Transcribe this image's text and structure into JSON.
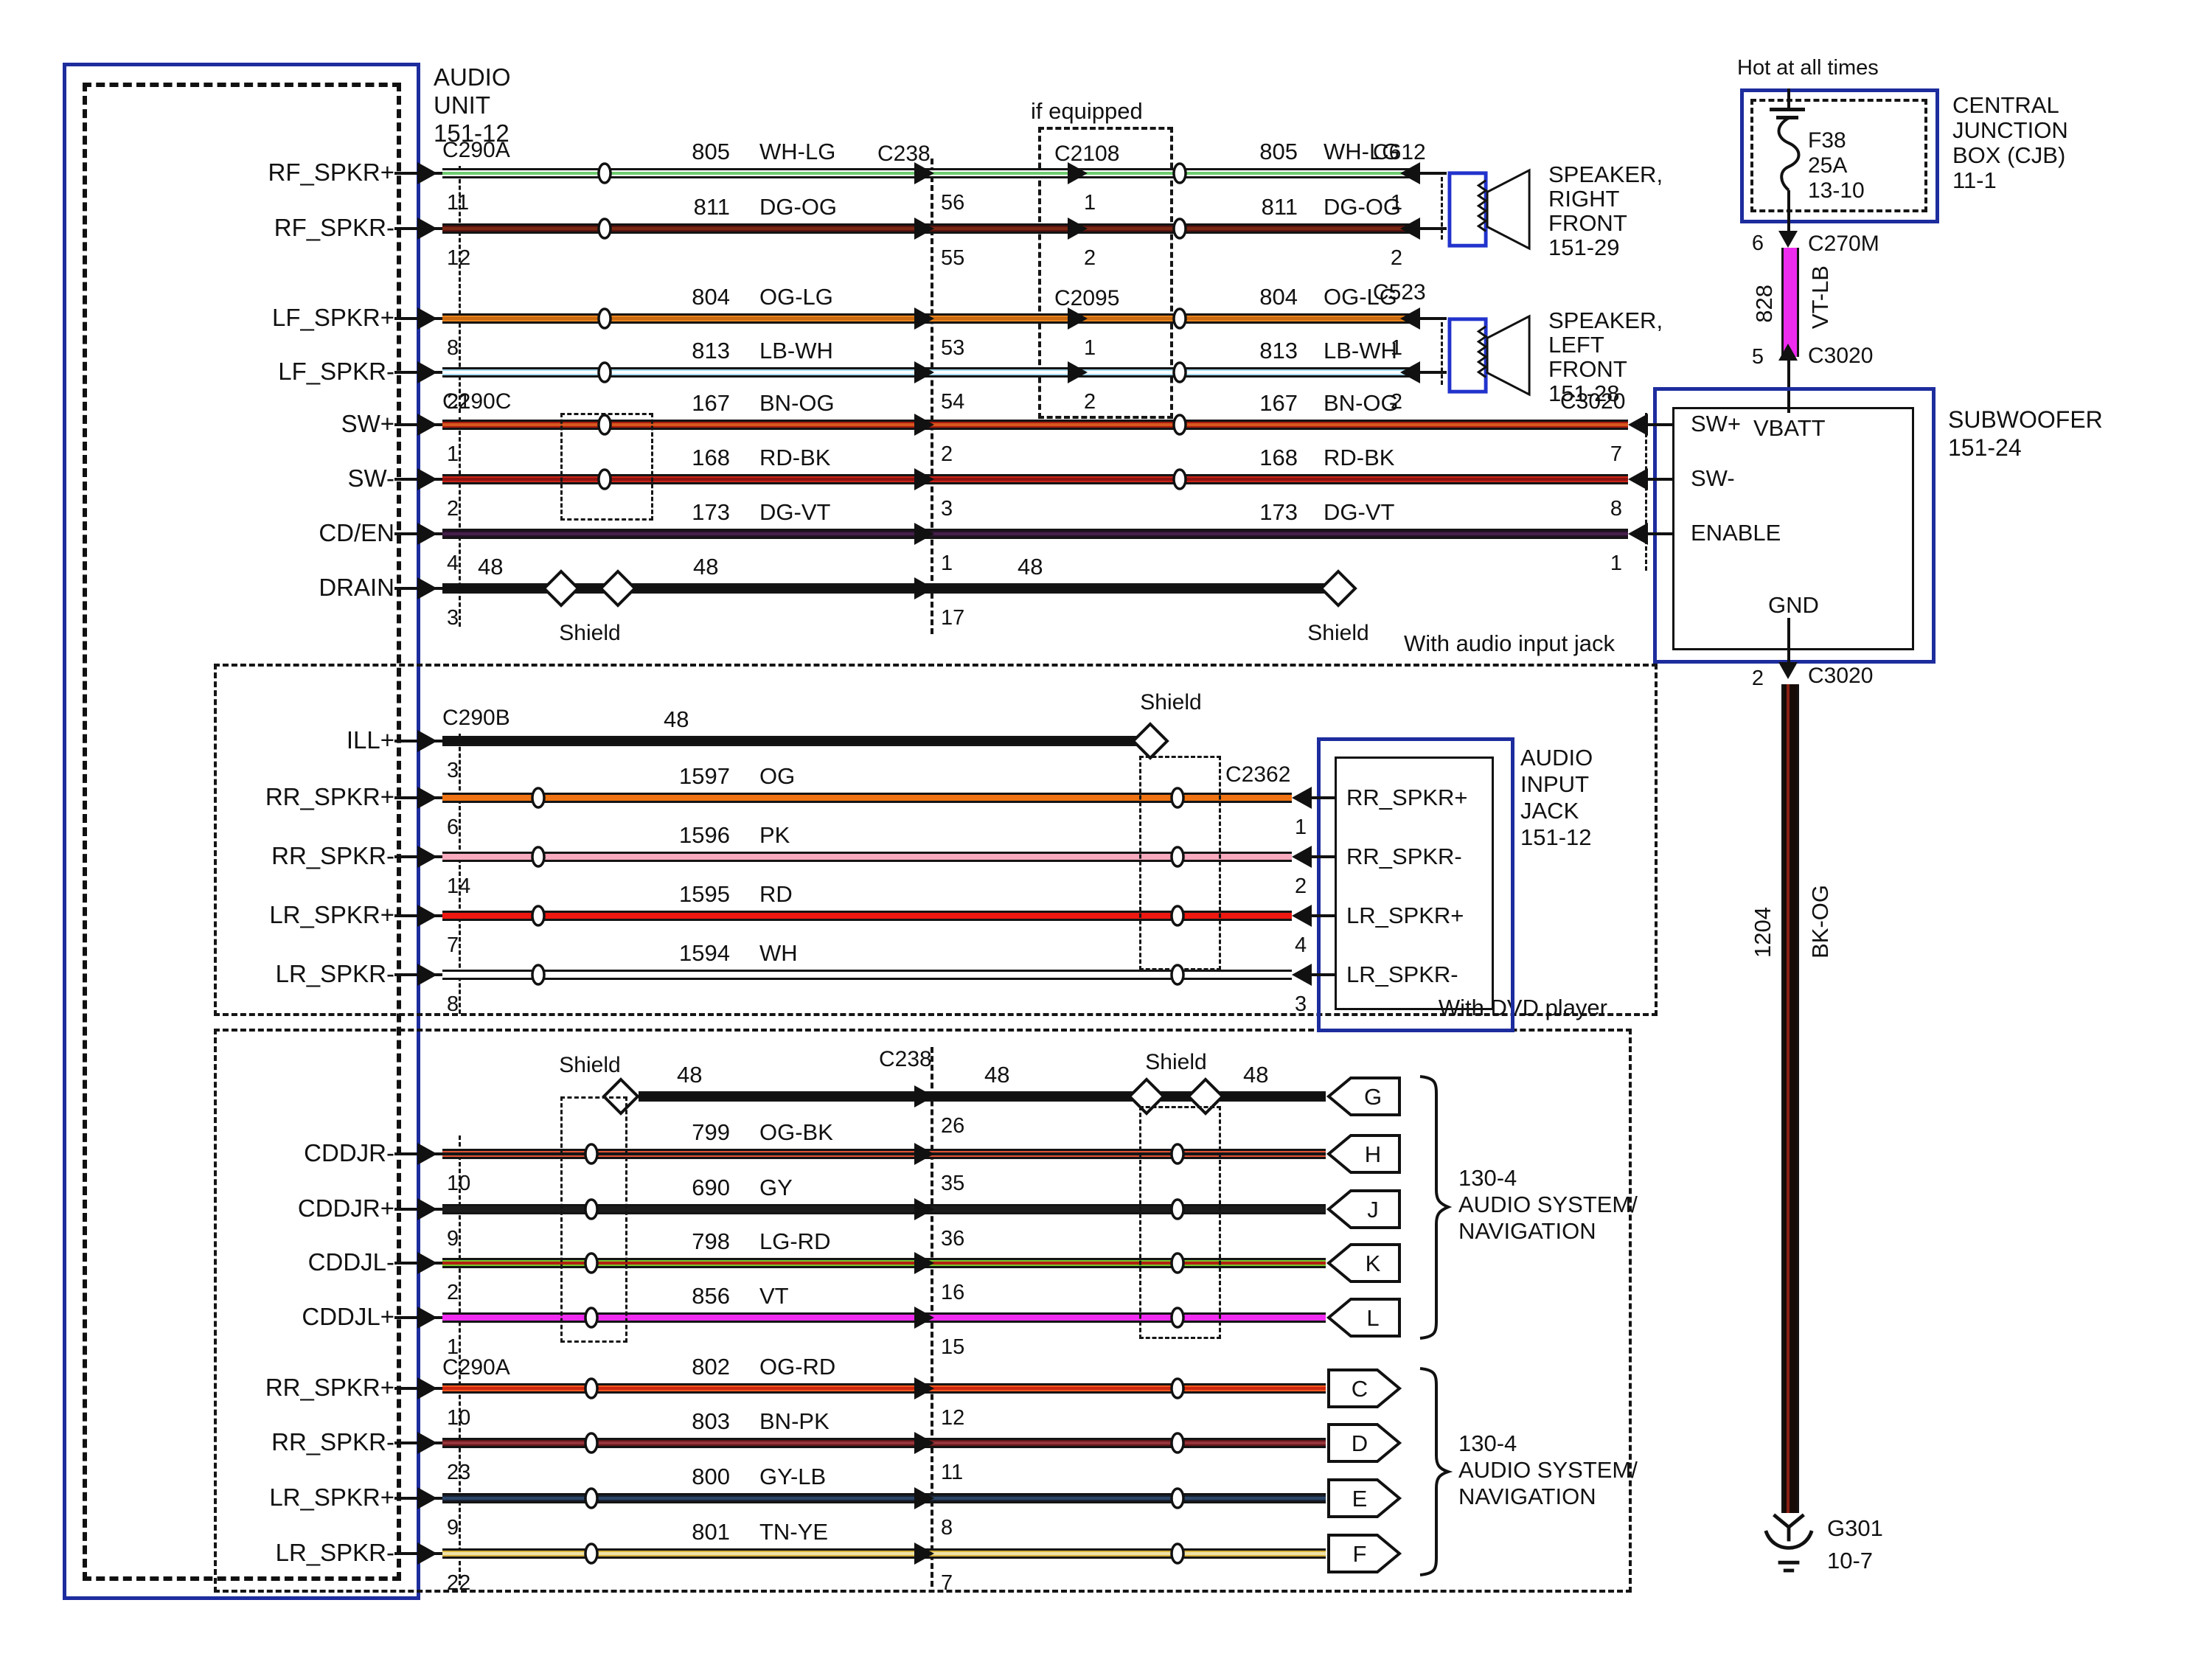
{
  "audio_unit": {
    "title": "AUDIO\nUNIT\n151-12"
  },
  "section_titles": {
    "audio_input": "With audio input jack",
    "dvd": "With DVD player",
    "if_equipped": "if equipped"
  },
  "shield_label": "Shield",
  "connectors": {
    "c290a": "C290A",
    "c290b": "C290B",
    "c290c": "C290C",
    "c238": "C238",
    "c2108": "C2108",
    "c2095": "C2095",
    "c612": "C612",
    "c523": "C523",
    "c2362": "C2362",
    "c3020": "C3020",
    "c270m": "C270M"
  },
  "top_rows": [
    {
      "label": "RF_SPKR+",
      "pin": "11",
      "circuit": "805",
      "code": "WH-LG",
      "c238_pin": "56",
      "equip_pin": "1",
      "base": "#ffffff",
      "stripe": "#6ecc6e"
    },
    {
      "label": "RF_SPKR-",
      "pin": "12",
      "circuit": "811",
      "code": "DG-OG",
      "c238_pin": "55",
      "equip_pin": "2",
      "base": "#581410",
      "stripe": "#7a2a14"
    },
    {
      "label": "LF_SPKR+",
      "pin": "8",
      "circuit": "804",
      "code": "OG-LG",
      "c238_pin": "53",
      "equip_pin": "1",
      "base": "#e8821c",
      "stripe": "#c96a12"
    },
    {
      "label": "LF_SPKR-",
      "pin": "21",
      "circuit": "813",
      "code": "LB-WH",
      "c238_pin": "54",
      "equip_pin": "2",
      "base": "#a6dcf2",
      "stripe": "#ffffff"
    },
    {
      "label": "SW+",
      "pin": "1",
      "circuit": "167",
      "code": "BN-OG",
      "c238_pin": "2",
      "base": "#ab1c10",
      "stripe": "#d8581e"
    },
    {
      "label": "SW-",
      "pin": "2",
      "circuit": "168",
      "code": "RD-BK",
      "c238_pin": "3",
      "base": "#cc2418",
      "stripe": "#8c1410"
    },
    {
      "label": "CD/EN",
      "pin": "4",
      "circuit": "173",
      "code": "DG-VT",
      "c238_pin": "1",
      "base": "#261028",
      "stripe": "#44204a"
    },
    {
      "label": "DRAIN",
      "pin": "3",
      "circuit": "48",
      "code": "",
      "c238_pin": "17",
      "base": "#111111"
    }
  ],
  "audio_rows": [
    {
      "label": "ILL+",
      "pin": "3",
      "circuit": "48",
      "code": "",
      "base": "#111111"
    },
    {
      "label": "RR_SPKR+",
      "pin": "6",
      "circuit": "1597",
      "code": "OG",
      "base": "#ef7312"
    },
    {
      "label": "RR_SPKR-",
      "pin": "14",
      "circuit": "1596",
      "code": "PK",
      "base": "#f8aabe"
    },
    {
      "label": "LR_SPKR+",
      "pin": "7",
      "circuit": "1595",
      "code": "RD",
      "base": "#ee1811"
    },
    {
      "label": "LR_SPKR-",
      "pin": "8",
      "circuit": "1594",
      "code": "WH",
      "base": "#ffffff"
    }
  ],
  "dvd_rows": [
    {
      "label": "",
      "pin": "",
      "circuit": "48",
      "code": "",
      "c238_pin": "26",
      "plug": "G",
      "base": "#111111"
    },
    {
      "label": "CDDJR-",
      "pin": "10",
      "circuit": "799",
      "code": "OG-BK",
      "c238_pin": "35",
      "plug": "H",
      "base": "#e25438",
      "stripe": "#161616"
    },
    {
      "label": "CDDJR+",
      "pin": "9",
      "circuit": "690",
      "code": "GY",
      "c238_pin": "36",
      "plug": "J",
      "base": "#1c1c1c"
    },
    {
      "label": "CDDJL-",
      "pin": "2",
      "circuit": "798",
      "code": "LG-RD",
      "c238_pin": "16",
      "plug": "K",
      "base": "#78c82e",
      "stripe": "#b22010"
    },
    {
      "label": "CDDJL+",
      "pin": "1",
      "circuit": "856",
      "code": "VT",
      "c238_pin": "15",
      "plug": "L",
      "base": "#f02cf0"
    },
    {
      "label": "RR_SPKR+",
      "pin": "10",
      "circuit": "802",
      "code": "OG-RD",
      "c238_pin": "12",
      "plug": "C",
      "base": "#f4581e",
      "stripe": "#cc2810"
    },
    {
      "label": "RR_SPKR-",
      "pin": "23",
      "circuit": "803",
      "code": "BN-PK",
      "c238_pin": "11",
      "plug": "D",
      "base": "#64181a",
      "stripe": "#94343a"
    },
    {
      "label": "LR_SPKR+",
      "pin": "9",
      "circuit": "800",
      "code": "GY-LB",
      "c238_pin": "8",
      "plug": "E",
      "base": "#182232",
      "stripe": "#2c4668"
    },
    {
      "label": "LR_SPKR-",
      "pin": "22",
      "circuit": "801",
      "code": "TN-YE",
      "c238_pin": "7",
      "plug": "F",
      "base": "#d8b23c",
      "stripe": "#efe2a8"
    }
  ],
  "cjb": {
    "hot": "Hot at all times",
    "fuse": "F38\n25A\n13-10",
    "name": "CENTRAL\nJUNCTION\nBOX (CJB)\n11-1",
    "pin_out": "6",
    "pin_in": "5",
    "wire": {
      "circuit": "828",
      "code": "VT-LB",
      "base": "#ee2cee",
      "stripe": "#f9a6f9"
    }
  },
  "subwoofer": {
    "name": "SUBWOOFER\n151-24",
    "sw_plus": "SW+",
    "vbatt": "VBATT",
    "sw_minus": "SW-",
    "enable": "ENABLE",
    "gnd": "GND",
    "pins": [
      "7",
      "8",
      "1"
    ],
    "bottom_pin": "2",
    "ground_wire": {
      "circuit": "1204",
      "code": "BK-OG",
      "base": "#170b07",
      "stripe": "#8a2014"
    },
    "ground": {
      "ref": "G301",
      "page": "10-7"
    }
  },
  "speakers": [
    {
      "name": "SPEAKER,\nRIGHT\nFRONT\n151-29",
      "pins": [
        "1",
        "2"
      ]
    },
    {
      "name": "SPEAKER,\nLEFT\nFRONT\n151-28",
      "pins": [
        "1",
        "2"
      ]
    }
  ],
  "jack": {
    "name": "AUDIO\nINPUT\nJACK\n151-12",
    "signals": [
      "RR_SPKR+",
      "RR_SPKR-",
      "LR_SPKR+",
      "LR_SPKR-"
    ],
    "pins": [
      "1",
      "2",
      "4",
      "3"
    ]
  },
  "nav": {
    "ref": "130-4\nAUDIO SYSTEM/\nNAVIGATION",
    "plugs_gl": [
      "G",
      "H",
      "J",
      "K",
      "L"
    ],
    "plugs_cf": [
      "C",
      "D",
      "E",
      "F"
    ]
  }
}
